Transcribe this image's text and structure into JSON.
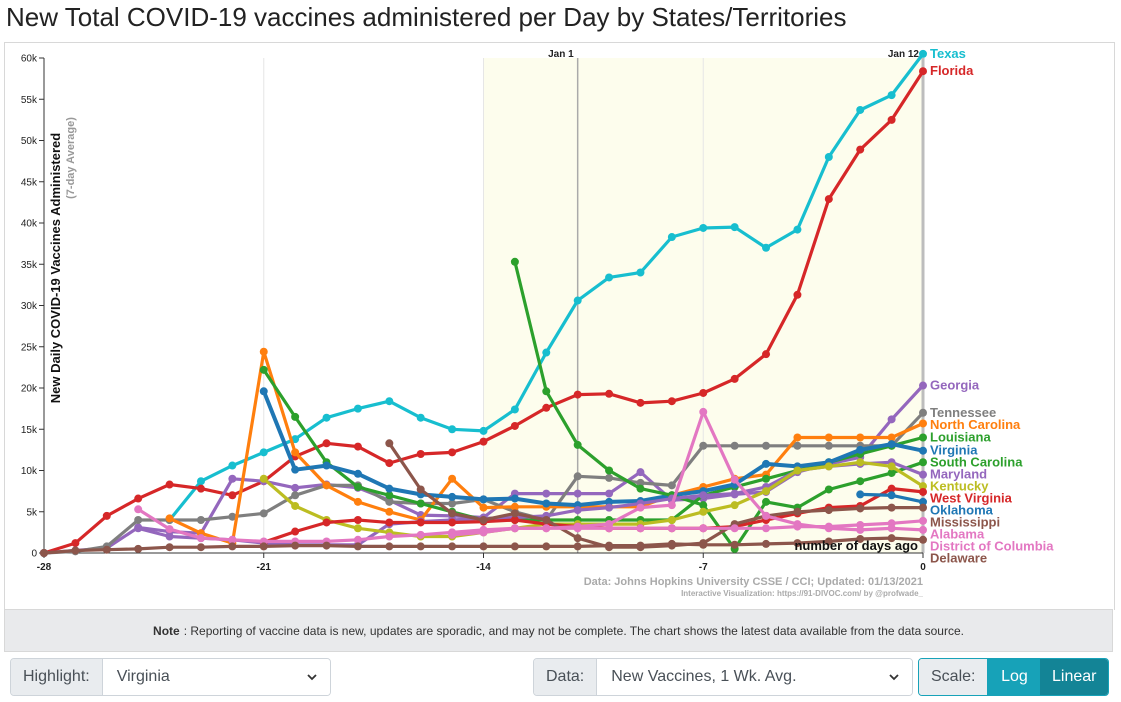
{
  "page": {
    "title": "New Total COVID-19 vaccines administered per Day by States/Territories"
  },
  "note": {
    "label": "Note",
    "text": ": Reporting of vaccine data is new, updates are sporadic, and may not be complete. The chart shows the latest data available from the data source."
  },
  "controls": {
    "highlight_label": "Highlight:",
    "highlight_value": "Virginia",
    "data_label": "Data:",
    "data_value": "New Vaccines, 1 Wk. Avg.",
    "scale_label": "Scale:",
    "scale_options": [
      "Log",
      "Linear"
    ],
    "scale_selected": "Linear",
    "log_color": "#17a2b8",
    "linear_color": "#138496"
  },
  "chart_data": {
    "type": "line",
    "title": "New Total COVID-19 vaccines administered per Day by States/Territories",
    "ylabel": "New Daily COVID-19 Vaccines Administered",
    "ylabel_sub": "(7-day Average)",
    "xlabel": "number of days ago",
    "x_ticks": [
      -28,
      -21,
      -14,
      -7,
      0
    ],
    "x_tick_labels": [
      "-28",
      "-21",
      "-14",
      "-7",
      "0"
    ],
    "xlim": [
      -28,
      0
    ],
    "y_ticks": [
      0,
      5000,
      10000,
      15000,
      20000,
      25000,
      30000,
      35000,
      40000,
      45000,
      50000,
      55000,
      60000
    ],
    "y_tick_labels": [
      "0",
      "5k",
      "10k",
      "15k",
      "20k",
      "25k",
      "30k",
      "35k",
      "40k",
      "45k",
      "50k",
      "55k",
      "60k"
    ],
    "ylim": [
      0,
      60000
    ],
    "grid": true,
    "date_markers": [
      {
        "x": -11,
        "label": "Jan 1"
      },
      {
        "x": 0,
        "label": "Jan 12"
      }
    ],
    "source": "Data: Johns Hopkins University CSSE / CCI; Updated: 01/13/2021",
    "credit": "Interactive Visualization: https://91-DIVOC.com/ by @profwade_",
    "highlight": "Virginia",
    "series": [
      {
        "name": "Texas",
        "color": "#17becf",
        "label_offset": 0,
        "x": [
          -24,
          -23,
          -22,
          -21,
          -20,
          -19,
          -18,
          -17,
          -16,
          -15,
          -14,
          -13,
          -12,
          -11,
          -10,
          -9,
          -8,
          -7,
          -6,
          -5,
          -4,
          -3,
          -2,
          -1,
          0
        ],
        "y": [
          4000,
          8700,
          10600,
          12200,
          13800,
          16400,
          17500,
          18400,
          16400,
          15000,
          14800,
          17400,
          24300,
          30600,
          33400,
          34000,
          38300,
          39400,
          39500,
          37000,
          39200,
          48000,
          53700,
          55500,
          60500
        ]
      },
      {
        "name": "Florida",
        "color": "#d62728",
        "label_offset": 0,
        "x": [
          -28,
          -27,
          -26,
          -25,
          -24,
          -23,
          -22,
          -21,
          -20,
          -19,
          -18,
          -17,
          -16,
          -15,
          -14,
          -13,
          -12,
          -11,
          -10,
          -9,
          -8,
          -7,
          -6,
          -5,
          -4,
          -3,
          -2,
          -1,
          0
        ],
        "y": [
          0,
          1200,
          4500,
          6600,
          8300,
          7800,
          7000,
          8700,
          11700,
          13300,
          12900,
          10900,
          12000,
          12200,
          13500,
          15400,
          17600,
          19200,
          19300,
          18200,
          18400,
          19400,
          21100,
          24100,
          31300,
          42900,
          48900,
          52500,
          58400
        ]
      },
      {
        "name": "Georgia",
        "color": "#9467bd",
        "label_offset": 0,
        "x": [
          -28,
          -27,
          -26,
          -25,
          -24,
          -23,
          -22,
          -21,
          -20,
          -19,
          -18,
          -17,
          -16,
          -15,
          -14,
          -13,
          -12,
          -11,
          -10,
          -9,
          -8,
          -7,
          -6,
          -5,
          -4,
          -3,
          -2,
          -1,
          0
        ],
        "y": [
          0,
          300,
          600,
          3100,
          2600,
          2400,
          9000,
          8700,
          7900,
          8300,
          7900,
          6400,
          4600,
          4500,
          4300,
          7200,
          7200,
          7200,
          7200,
          9800,
          6400,
          6600,
          7100,
          7400,
          9800,
          10800,
          11600,
          16200,
          20300
        ]
      },
      {
        "name": "Tennessee",
        "color": "#7f7f7f",
        "label_offset": 0,
        "x": [
          -28,
          -27,
          -26,
          -25,
          -24,
          -23,
          -22,
          -21,
          -20,
          -19,
          -18,
          -17,
          -16,
          -15,
          -14,
          -13,
          -12,
          -11,
          -10,
          -9,
          -8,
          -7,
          -6,
          -5,
          -4,
          -3,
          -2,
          -1,
          0
        ],
        "y": [
          0,
          200,
          800,
          4000,
          4000,
          4000,
          4400,
          4800,
          7000,
          8200,
          8200,
          6200,
          6000,
          6000,
          6500,
          5000,
          4000,
          9300,
          9100,
          8500,
          8200,
          13000,
          13000,
          13000,
          13000,
          13000,
          13000,
          13000,
          17000
        ]
      },
      {
        "name": "North Carolina",
        "color": "#ff7f0e",
        "label_offset": 0,
        "x": [
          -24,
          -23,
          -22,
          -21,
          -20,
          -19,
          -18,
          -17,
          -16,
          -15,
          -14,
          -13,
          -12,
          -11,
          -10,
          -9,
          -8,
          -7,
          -6,
          -5,
          -4,
          -3,
          -2,
          -1,
          0
        ],
        "y": [
          4200,
          2400,
          1200,
          24400,
          12200,
          8200,
          6200,
          5000,
          4000,
          9000,
          5500,
          5600,
          5600,
          5600,
          5600,
          5600,
          7000,
          8000,
          9000,
          9500,
          14000,
          14000,
          14000,
          14000,
          15700
        ]
      },
      {
        "name": "Louisiana",
        "color": "#2ca02c",
        "label_offset": 0,
        "x": [
          -21,
          -20,
          -19,
          -18,
          -17,
          -16,
          -15,
          -14,
          -13,
          -12,
          -11,
          -10,
          -9,
          -8,
          -7,
          -6,
          -5,
          -4,
          -3,
          -2,
          -1,
          0
        ],
        "y": [
          22200,
          16500,
          11000,
          8000,
          7000,
          6000,
          5000,
          4000,
          4000,
          4000,
          4000,
          4000,
          4000,
          4000,
          7000,
          8000,
          9000,
          10000,
          11000,
          12000,
          13000,
          14000
        ]
      },
      {
        "name": "Virginia",
        "color": "#1f77b4",
        "label_offset": 0,
        "x": [
          -21,
          -20,
          -19,
          -18,
          -17,
          -16,
          -15,
          -14,
          -13,
          -12,
          -11,
          -10,
          -9,
          -8,
          -7,
          -6,
          -5,
          -4,
          -3,
          -2,
          -1,
          0
        ],
        "y": [
          19600,
          10100,
          10600,
          9600,
          7800,
          7100,
          6800,
          6500,
          6600,
          6000,
          5800,
          6200,
          6300,
          7000,
          7500,
          8300,
          10800,
          10500,
          11000,
          12500,
          13200,
          12400
        ]
      },
      {
        "name": "South Carolina",
        "color": "#2ca02c",
        "label_offset": 0,
        "x": [
          -13,
          -12,
          -11,
          -10,
          -9,
          -8,
          -7,
          -6,
          -5,
          -4,
          -3,
          -2,
          -1,
          0
        ],
        "y": [
          35300,
          19600,
          13100,
          10000,
          7800,
          7000,
          5800,
          500,
          6200,
          5500,
          7700,
          8700,
          9700,
          11000
        ]
      },
      {
        "name": "Maryland",
        "color": "#9467bd",
        "label_offset": 0,
        "x": [
          -25,
          -24,
          -23,
          -22,
          -21,
          -20,
          -19,
          -18,
          -17,
          -16,
          -15,
          -14,
          -13,
          -12,
          -11,
          -10,
          -9,
          -8,
          -7,
          -6,
          -5,
          -4,
          -3,
          -2,
          -1,
          0
        ],
        "y": [
          3000,
          2000,
          1800,
          1600,
          1200,
          1000,
          1000,
          1000,
          3500,
          3800,
          4000,
          4200,
          4300,
          4500,
          5200,
          5500,
          6000,
          6600,
          7000,
          7200,
          8000,
          10000,
          10500,
          10800,
          11000,
          9500
        ]
      },
      {
        "name": "Kentucky",
        "color": "#bcbd22",
        "label_offset": 0,
        "x": [
          -21,
          -20,
          -19,
          -18,
          -17,
          -16,
          -15,
          -14,
          -13,
          -12,
          -11,
          -10,
          -9,
          -8,
          -7,
          -6,
          -5,
          -4,
          -3,
          -2,
          -1,
          0
        ],
        "y": [
          9000,
          5700,
          4000,
          3000,
          2500,
          2000,
          2000,
          2500,
          3000,
          3500,
          3500,
          3500,
          3500,
          4000,
          5000,
          5800,
          7500,
          10000,
          10500,
          11000,
          10500,
          8100
        ]
      },
      {
        "name": "West Virginia",
        "color": "#d62728",
        "label_offset": 0,
        "x": [
          -21,
          -20,
          -19,
          -18,
          -17,
          -16,
          -15,
          -14,
          -13,
          -12,
          -11,
          -10,
          -9,
          -8,
          -7,
          -6,
          -5,
          -4,
          -3,
          -2,
          -1,
          0
        ],
        "y": [
          1300,
          2600,
          3700,
          4000,
          3700,
          3700,
          3700,
          3800,
          4000,
          3500,
          3200,
          3000,
          3000,
          3000,
          3000,
          3200,
          4000,
          4800,
          5500,
          5700,
          7800,
          7400
        ]
      },
      {
        "name": "Oklahoma",
        "color": "#1f77b4",
        "label_offset": 0,
        "x": [
          -2,
          -1,
          0
        ],
        "y": [
          7100,
          7000,
          6200
        ]
      },
      {
        "name": "Mississippi",
        "color": "#8c564b",
        "label_offset": 0,
        "x": [
          -17,
          -16,
          -15,
          -14,
          -13,
          -12,
          -11,
          -10,
          -9,
          -8,
          -7,
          -6,
          -5,
          -4,
          -3,
          -2,
          -1,
          0
        ],
        "y": [
          13300,
          7700,
          4800,
          4000,
          4800,
          4000,
          1800,
          700,
          700,
          900,
          1200,
          3500,
          4500,
          5000,
          5200,
          5400,
          5500,
          5500
        ]
      },
      {
        "name": "Alabama",
        "color": "#e377c2",
        "label_offset": 0,
        "x": [
          -25,
          -24,
          -23,
          -22,
          -21,
          -20,
          -19,
          -18,
          -17,
          -16,
          -15,
          -14,
          -13,
          -12,
          -11,
          -10,
          -9,
          -8,
          -7,
          -6,
          -5,
          -4,
          -3,
          -2,
          -1,
          0
        ],
        "y": [
          5300,
          2900,
          1800,
          1600,
          1400,
          1400,
          1400,
          1600,
          2000,
          2200,
          2500,
          2800,
          3000,
          3000,
          3000,
          3000,
          3000,
          3000,
          3000,
          3000,
          3000,
          3200,
          3200,
          3400,
          3600,
          3900
        ]
      },
      {
        "name": "District of Columbia",
        "color": "#e377c2",
        "label_offset": 0,
        "x": [
          -15,
          -14,
          -13,
          -12,
          -11,
          -10,
          -9,
          -8,
          -7,
          -6,
          -5,
          -4,
          -3,
          -2,
          -1,
          0
        ],
        "y": [
          2200,
          2500,
          3000,
          3000,
          3200,
          3500,
          5500,
          5800,
          17100,
          8900,
          4500,
          3500,
          3000,
          2800,
          3000,
          2800
        ]
      },
      {
        "name": "Delaware",
        "color": "#8c564b",
        "label_offset": 0,
        "x": [
          -28,
          -27,
          -26,
          -25,
          -24,
          -23,
          -22,
          -21,
          -20,
          -19,
          -18,
          -17,
          -16,
          -15,
          -14,
          -13,
          -12,
          -11,
          -10,
          -9,
          -8,
          -7,
          -6,
          -5,
          -4,
          -3,
          -2,
          -1,
          0
        ],
        "y": [
          0,
          300,
          400,
          500,
          700,
          700,
          800,
          800,
          900,
          900,
          800,
          800,
          800,
          800,
          800,
          800,
          800,
          800,
          900,
          900,
          1100,
          1000,
          1000,
          1100,
          1200,
          1400,
          1700,
          1800,
          1600
        ]
      }
    ]
  }
}
